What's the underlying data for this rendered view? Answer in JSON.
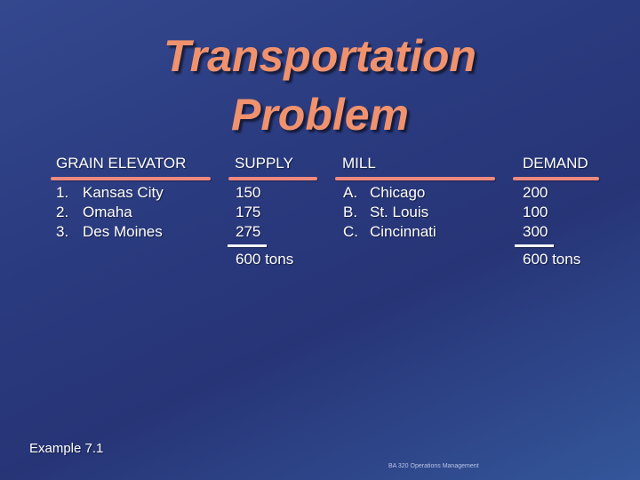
{
  "title": {
    "line1": "Transportation",
    "line2": "Problem"
  },
  "headers": {
    "elevator": "GRAIN ELEVATOR",
    "supply": "SUPPLY",
    "mill": "MILL",
    "demand": "DEMAND"
  },
  "elevators": [
    {
      "num": "1.",
      "name": "Kansas City"
    },
    {
      "num": "2.",
      "name": "Omaha"
    },
    {
      "num": "3.",
      "name": "Des Moines"
    }
  ],
  "supply": [
    "150",
    "175",
    "275"
  ],
  "mills": [
    {
      "num": "A.",
      "name": "Chicago"
    },
    {
      "num": "B.",
      "name": "St. Louis"
    },
    {
      "num": "C.",
      "name": "Cincinnati"
    }
  ],
  "demand": [
    "200",
    "100",
    "300"
  ],
  "totals": {
    "supply": "600  tons",
    "demand": "600  tons"
  },
  "example": "Example 7.1",
  "footer": "BA 320 Operations Management",
  "colors": {
    "title": "#f0926e",
    "rule": "#f08a80",
    "text": "#ffffff"
  }
}
